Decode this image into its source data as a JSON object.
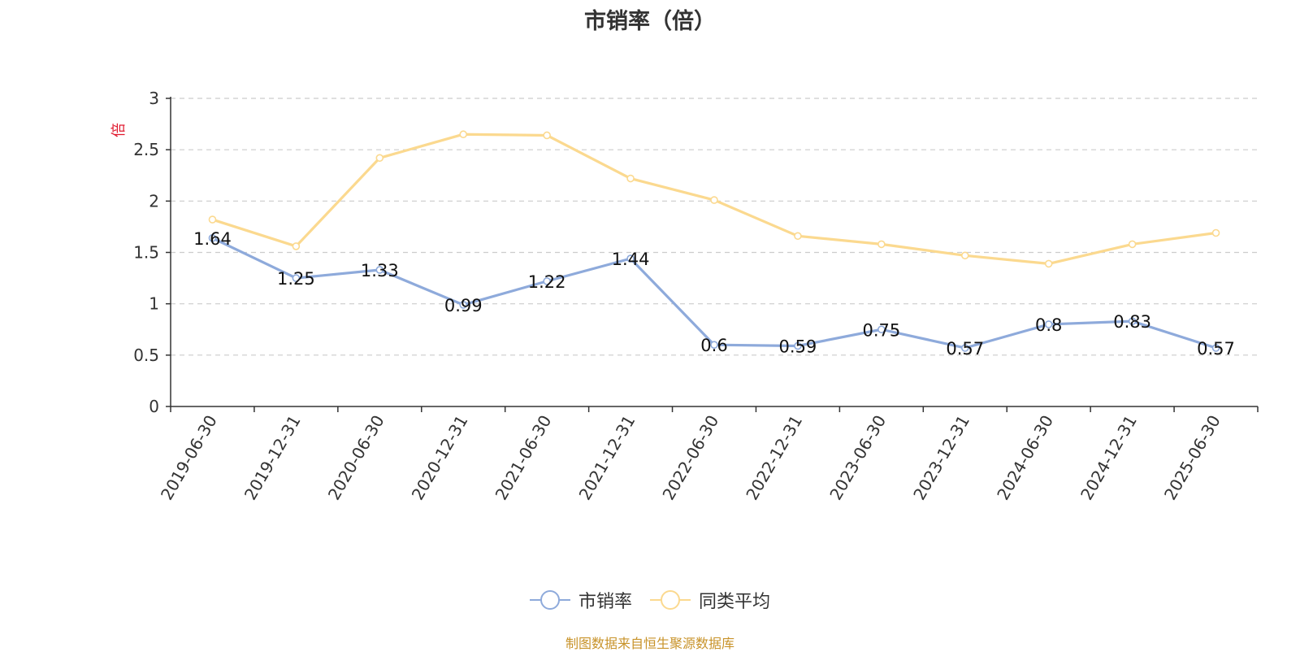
{
  "chart_data": {
    "type": "line",
    "title": "市销率（倍）",
    "ylabel": "倍",
    "ylim": [
      0,
      3
    ],
    "yticks": [
      0,
      0.5,
      1,
      1.5,
      2,
      2.5,
      3
    ],
    "grid": true,
    "legend_placement": "bottom-center",
    "categories": [
      "2019-06-30",
      "2019-12-31",
      "2020-06-30",
      "2020-12-31",
      "2021-06-30",
      "2021-12-31",
      "2022-06-30",
      "2022-12-31",
      "2023-06-30",
      "2023-12-31",
      "2024-06-30",
      "2024-12-31",
      "2025-06-30"
    ],
    "series": [
      {
        "name": "市销率",
        "color": "#8eaadb",
        "labels": true,
        "values": [
          1.64,
          1.25,
          1.33,
          0.99,
          1.22,
          1.44,
          0.6,
          0.59,
          0.75,
          0.57,
          0.8,
          0.83,
          0.57
        ]
      },
      {
        "name": "同类平均",
        "color": "#fbd98f",
        "labels": false,
        "values": [
          1.82,
          1.56,
          2.42,
          2.65,
          2.64,
          2.22,
          2.01,
          1.66,
          1.58,
          1.47,
          1.39,
          1.58,
          1.69
        ]
      }
    ]
  },
  "source_note": "制图数据来自恒生聚源数据库",
  "colors": {
    "axis": "#333333",
    "grid": "#cccccc",
    "ylabel": "#e0192e",
    "source": "#c8932a"
  }
}
